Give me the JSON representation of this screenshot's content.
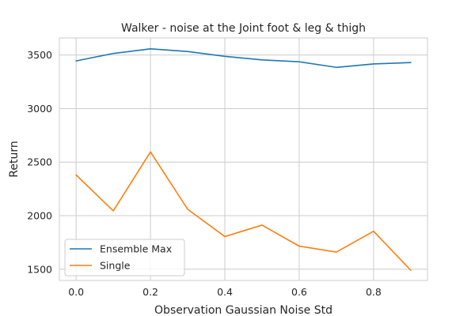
{
  "chart_data": {
    "type": "line",
    "title": "Walker - noise at the Joint foot & leg & thigh",
    "xlabel": "Observation Gaussian Noise Std",
    "ylabel": "Return",
    "x": [
      0.0,
      0.1,
      0.2,
      0.3,
      0.4,
      0.5,
      0.6,
      0.7,
      0.8,
      0.9
    ],
    "series": [
      {
        "name": "Ensemble Max",
        "color": "#1f77b4",
        "values": [
          3445,
          3515,
          3558,
          3533,
          3488,
          3455,
          3437,
          3385,
          3417,
          3430
        ]
      },
      {
        "name": "Single",
        "color": "#ff7f0e",
        "values": [
          2380,
          2045,
          2595,
          2060,
          1805,
          1912,
          1715,
          1660,
          1855,
          1490
        ]
      }
    ],
    "xlim": [
      -0.045,
      0.945
    ],
    "ylim": [
      1395,
      3660
    ],
    "xticks": [
      0.0,
      0.2,
      0.4,
      0.6,
      0.8
    ],
    "xtick_labels": [
      "0.0",
      "0.2",
      "0.4",
      "0.6",
      "0.8"
    ],
    "yticks": [
      1500,
      2000,
      2500,
      3000,
      3500
    ],
    "ytick_labels": [
      "1500",
      "2000",
      "2500",
      "3000",
      "3500"
    ],
    "grid": true,
    "legend_position": "lower-left"
  }
}
